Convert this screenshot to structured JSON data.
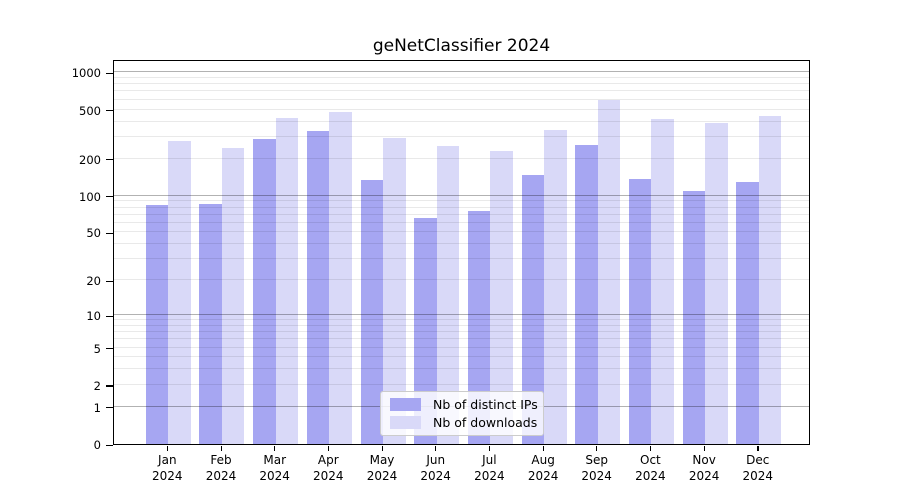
{
  "figure": {
    "title": "geNetClassifier 2024"
  },
  "legend": {
    "items": [
      {
        "label": "Nb of distinct IPs",
        "color": "#a6a6f2"
      },
      {
        "label": "Nb of downloads",
        "color": "#d9d9f8"
      }
    ]
  },
  "chart_data": {
    "type": "bar",
    "title": "geNetClassifier 2024",
    "categories": [
      "Jan",
      "Feb",
      "Mar",
      "Apr",
      "May",
      "Jun",
      "Jul",
      "Aug",
      "Sep",
      "Oct",
      "Nov",
      "Dec"
    ],
    "year": "2024",
    "series": [
      {
        "name": "Nb of distinct IPs",
        "color": "#a6a6f2",
        "values": [
          84,
          86,
          289,
          337,
          135,
          66,
          75,
          148,
          256,
          138,
          110,
          130
        ]
      },
      {
        "name": "Nb of downloads",
        "color": "#d9d9f8",
        "values": [
          278,
          243,
          424,
          474,
          292,
          254,
          232,
          341,
          600,
          417,
          391,
          443
        ]
      }
    ],
    "xlabel": "",
    "ylabel": "",
    "y_scale": "log10(value+1)",
    "y_ticks": [
      1000,
      500,
      200,
      100,
      50,
      20,
      10,
      5,
      2,
      1,
      0
    ],
    "grid_major_values": [
      1,
      10,
      100,
      1000
    ],
    "grid_minor_multiples": [
      2,
      3,
      4,
      5,
      6,
      7,
      8,
      9
    ],
    "grid_minor_decades": [
      1,
      10,
      100
    ],
    "legend_position": "inside-bottom-center",
    "ylim_top": 1000
  }
}
